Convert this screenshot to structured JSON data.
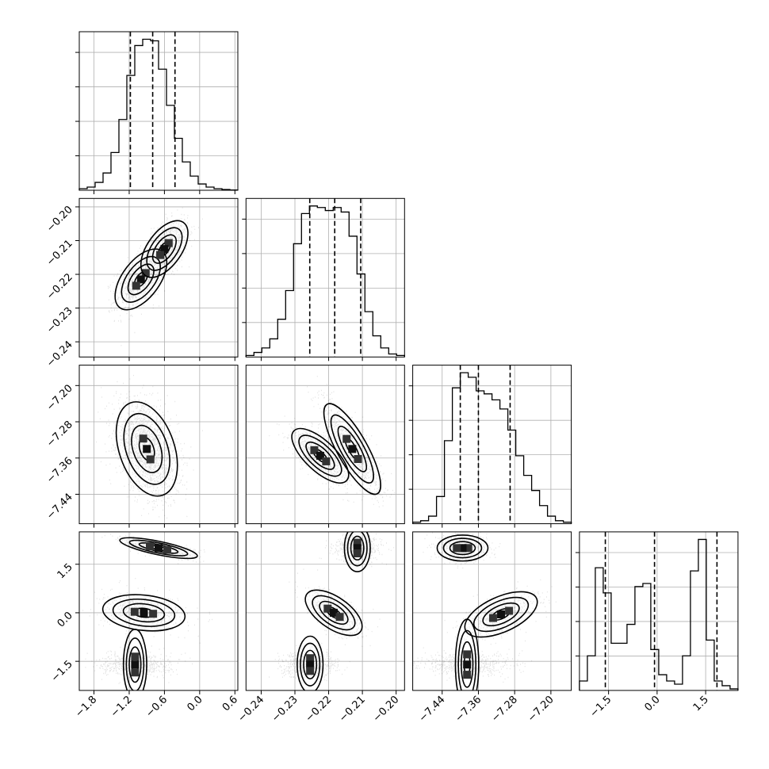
{
  "chart_data": {
    "type": "corner",
    "quantiles": [
      0.16,
      0.5,
      0.84
    ],
    "grid": true,
    "parameters": [
      {
        "index": 0,
        "range": [
          -2.05,
          0.65
        ],
        "ticks": [
          -1.8,
          -1.2,
          -0.6,
          0.0,
          0.6
        ],
        "tick_labels": [
          "−1.8",
          "−1.2",
          "−0.6",
          "0.0",
          "0.6"
        ],
        "quantile_values": [
          -1.18,
          -0.8,
          -0.42
        ],
        "hist": {
          "edges_start": -2.05,
          "bin_width": 0.135,
          "counts": [
            1,
            2,
            5,
            11,
            24,
            45,
            73,
            92,
            96,
            95,
            77,
            54,
            33,
            18,
            9,
            4,
            2,
            1,
            0.5,
            0.2
          ]
        },
        "modes": [
          {
            "mean": -0.95,
            "sd": 0.28
          }
        ]
      },
      {
        "index": 1,
        "range": [
          -0.2445,
          -0.1975
        ],
        "ticks": [
          -0.24,
          -0.23,
          -0.22,
          -0.21,
          -0.2
        ],
        "tick_labels": [
          "−0.24",
          "−0.23",
          "−0.22",
          "−0.21",
          "−0.20"
        ],
        "quantile_values": [
          -0.2256,
          -0.2182,
          -0.2105
        ],
        "hist": {
          "edges_start": -0.2445,
          "bin_width": 0.00235,
          "counts": [
            1,
            3,
            6,
            12,
            25,
            44,
            75,
            95,
            100,
            99,
            97,
            99,
            96,
            80,
            55,
            30,
            14,
            6,
            2,
            1
          ]
        },
        "modes": [
          {
            "mean": -0.2225,
            "sd": 0.0042
          },
          {
            "mean": -0.2135,
            "sd": 0.0042
          }
        ]
      },
      {
        "index": 2,
        "range": [
          -7.505,
          -7.155
        ],
        "ticks": [
          -7.44,
          -7.36,
          -7.28,
          -7.2
        ],
        "tick_labels": [
          "−7.44",
          "−7.36",
          "−7.28",
          "−7.20"
        ],
        "quantile_values": [
          -7.4,
          -7.36,
          -7.29
        ],
        "hist": {
          "edges_start": -7.505,
          "bin_width": 0.0175,
          "counts": [
            1,
            2,
            5,
            18,
            55,
            90,
            100,
            97,
            88,
            86,
            82,
            76,
            62,
            45,
            32,
            22,
            12,
            5,
            2,
            1
          ]
        },
        "modes": [
          {
            "mean": -7.37,
            "sd": 0.032
          },
          {
            "mean": -7.315,
            "sd": 0.038
          }
        ]
      },
      {
        "index": 3,
        "range": [
          -2.4,
          2.5
        ],
        "ticks": [
          -1.5,
          0.0,
          1.5
        ],
        "tick_labels": [
          "−1.5",
          "0.0",
          "1.5"
        ],
        "quantile_values": [
          -1.6,
          -0.08,
          1.85
        ],
        "hist": {
          "edges_start": -2.4,
          "bin_width": 0.245,
          "counts": [
            6,
            22,
            78,
            62,
            30,
            30,
            42,
            66,
            68,
            26,
            10,
            6,
            4,
            22,
            76,
            96,
            32,
            6,
            3,
            1
          ]
        },
        "modes": [
          {
            "mean": -1.65,
            "sd": 0.22
          },
          {
            "mean": -0.15,
            "sd": 0.25
          },
          {
            "mean": 1.85,
            "sd": 0.22
          }
        ]
      }
    ],
    "pairs": [
      {
        "x": 0,
        "y": 1,
        "modes": [
          {
            "x": -1.0,
            "y": -0.2215,
            "sx": 0.22,
            "sy": 0.0045,
            "rho": 0.55
          },
          {
            "x": -0.6,
            "y": -0.2125,
            "sx": 0.2,
            "sy": 0.0042,
            "rho": 0.55
          }
        ]
      },
      {
        "x": 0,
        "y": 2,
        "modes": [
          {
            "x": -0.9,
            "y": -7.34,
            "sx": 0.26,
            "sy": 0.052,
            "rho": -0.35
          }
        ]
      },
      {
        "x": 1,
        "y": 2,
        "modes": [
          {
            "x": -0.2225,
            "y": -7.355,
            "sx": 0.0042,
            "sy": 0.03,
            "rho": -0.7
          },
          {
            "x": -0.213,
            "y": -7.34,
            "sx": 0.0042,
            "sy": 0.05,
            "rho": -0.8
          }
        ]
      },
      {
        "x": 0,
        "y": 3,
        "modes": [
          {
            "x": -0.7,
            "y": 2.0,
            "sx": 0.33,
            "sy": 0.16,
            "rho": -0.75
          },
          {
            "x": -0.95,
            "y": 0.0,
            "sx": 0.35,
            "sy": 0.28,
            "rho": -0.2
          },
          {
            "x": -1.1,
            "y": -1.6,
            "sx": 0.3,
            "sy": 0.18,
            "rho": 0.0
          }
        ]
      },
      {
        "x": 1,
        "y": 3,
        "modes": [
          {
            "x": -0.2115,
            "y": 2.0,
            "sx": 0.0035,
            "sy": 0.2,
            "rho": 0.0
          },
          {
            "x": -0.2185,
            "y": 0.0,
            "sx": 0.0042,
            "sy": 0.35,
            "rho": -0.6
          },
          {
            "x": -0.2255,
            "y": -1.6,
            "sx": 0.0042,
            "sy": 0.2,
            "rho": 0.0
          }
        ]
      },
      {
        "x": 2,
        "y": 3,
        "modes": [
          {
            "x": -7.395,
            "y": 2.0,
            "sx": 0.028,
            "sy": 0.2,
            "rho": 0.0
          },
          {
            "x": -7.31,
            "y": -0.05,
            "sx": 0.04,
            "sy": 0.35,
            "rho": 0.55
          },
          {
            "x": -7.385,
            "y": -1.6,
            "sx": 0.05,
            "sy": 0.18,
            "rho": 0.0
          }
        ]
      }
    ]
  }
}
